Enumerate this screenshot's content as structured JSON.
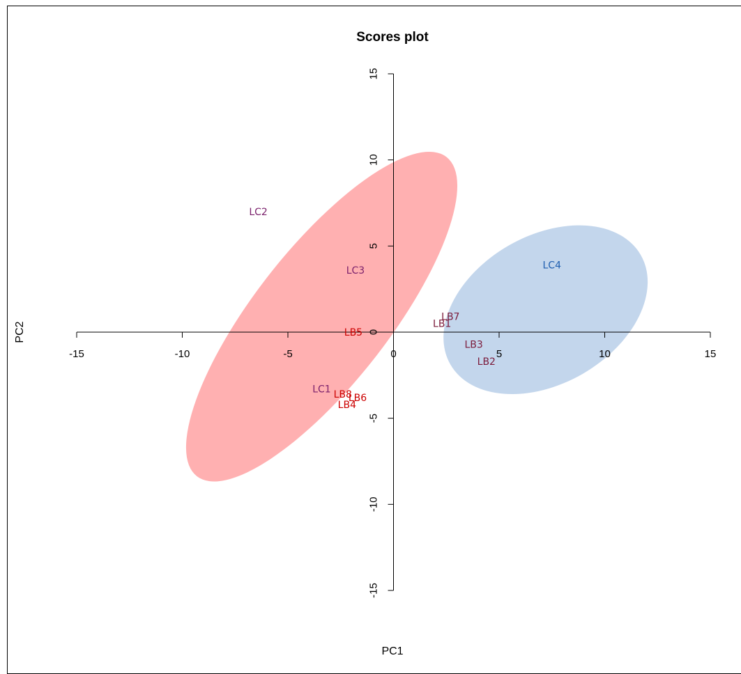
{
  "chart_data": {
    "type": "scatter",
    "title": "Scores plot",
    "xlabel": "PC1",
    "ylabel": "PC2",
    "xlim": [
      -15,
      15
    ],
    "ylim": [
      -15,
      15
    ],
    "xticks": [
      -15,
      -10,
      -5,
      0,
      5,
      10,
      15
    ],
    "yticks": [
      -15,
      -10,
      -5,
      0,
      5,
      10,
      15
    ],
    "xtick_labels": [
      "-15",
      "-10",
      "-5",
      "0",
      "5",
      "10",
      "15"
    ],
    "ytick_labels": [
      "-15",
      "-10",
      "-5",
      "0",
      "5",
      "10",
      "15"
    ],
    "grid": false,
    "ellipses": [
      {
        "center": [
          -3.4,
          0.9
        ],
        "semi_major": 9.6,
        "semi_minor": 3.9,
        "angle_deg": -52,
        "color": "#ff8a8c",
        "opacity": 0.68
      },
      {
        "center": [
          7.2,
          1.3
        ],
        "semi_major": 5.2,
        "semi_minor": 4.3,
        "angle_deg": -30,
        "color": "#9ebde0",
        "opacity": 0.62
      }
    ],
    "points": [
      {
        "label": "LC2",
        "x": -6.4,
        "y": 7.0,
        "color": "#7a1f6b"
      },
      {
        "label": "LC3",
        "x": -1.8,
        "y": 3.6,
        "color": "#7a1f6b"
      },
      {
        "label": "LC4",
        "x": 7.5,
        "y": 3.9,
        "color": "#1f5fb0"
      },
      {
        "label": "LB7",
        "x": 2.7,
        "y": 0.9,
        "color": "#7b1a3a"
      },
      {
        "label": "LB1",
        "x": 2.3,
        "y": 0.5,
        "color": "#7b1a3a"
      },
      {
        "label": "LB5",
        "x": -1.9,
        "y": 0.0,
        "color": "#cc0000"
      },
      {
        "label": "LB3",
        "x": 3.8,
        "y": -0.7,
        "color": "#7b1a3a"
      },
      {
        "label": "LB2",
        "x": 4.4,
        "y": -1.7,
        "color": "#7b1a3a"
      },
      {
        "label": "LC1",
        "x": -3.4,
        "y": -3.3,
        "color": "#7a1f6b"
      },
      {
        "label": "LB8",
        "x": -2.4,
        "y": -3.6,
        "color": "#cc0000"
      },
      {
        "label": "LB6",
        "x": -1.7,
        "y": -3.8,
        "color": "#cc0000"
      },
      {
        "label": "LB4",
        "x": -2.2,
        "y": -4.2,
        "color": "#cc0000"
      }
    ]
  }
}
